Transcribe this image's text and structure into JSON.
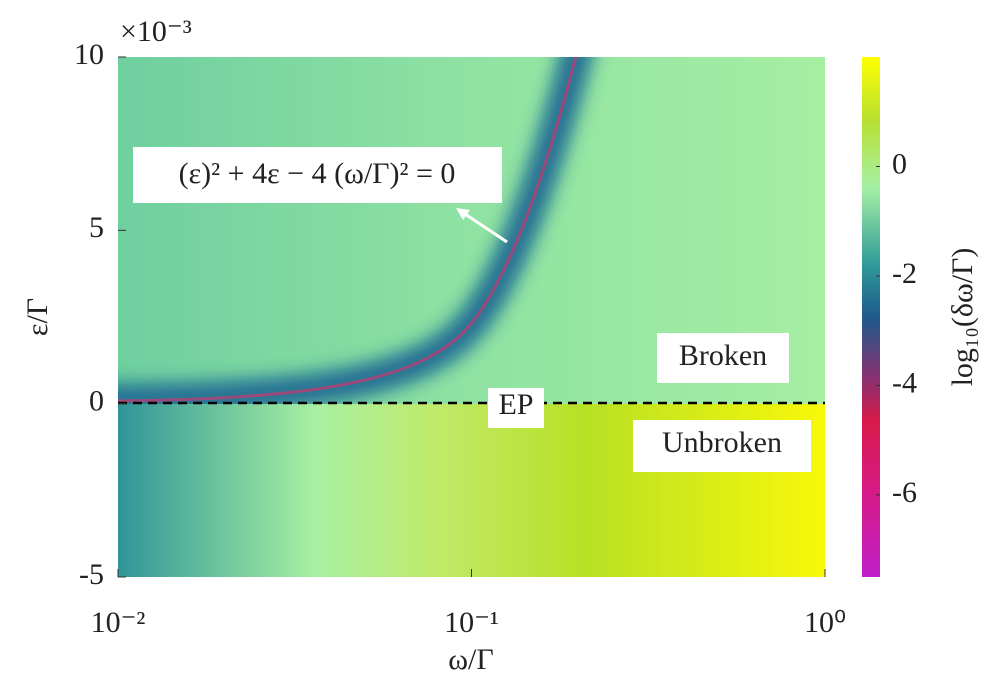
{
  "chart_data": {
    "type": "heatmap",
    "xlabel": "ω/Γ",
    "ylabel": "ε/Γ",
    "y_multiplier": "×10⁻³",
    "xscale": "log",
    "xlim": [
      0.01,
      1
    ],
    "xticks": [
      {
        "value": 0.01,
        "label": "10⁻²"
      },
      {
        "value": 0.1,
        "label": "10⁻¹"
      },
      {
        "value": 1,
        "label": "10⁰"
      }
    ],
    "ylim": [
      -5,
      10
    ],
    "yticks": [
      -5,
      0,
      5,
      10
    ],
    "colorbar_label": "log₁₀(δω/Γ)",
    "clim": [
      -7.5,
      2
    ],
    "colorbar_ticks": [
      -6,
      -4,
      -2,
      0
    ],
    "annotations": [
      "(ε)² + 4ε − 4 (ω/Γ)² = 0",
      "EP",
      "Broken",
      "Unbroken"
    ]
  }
}
